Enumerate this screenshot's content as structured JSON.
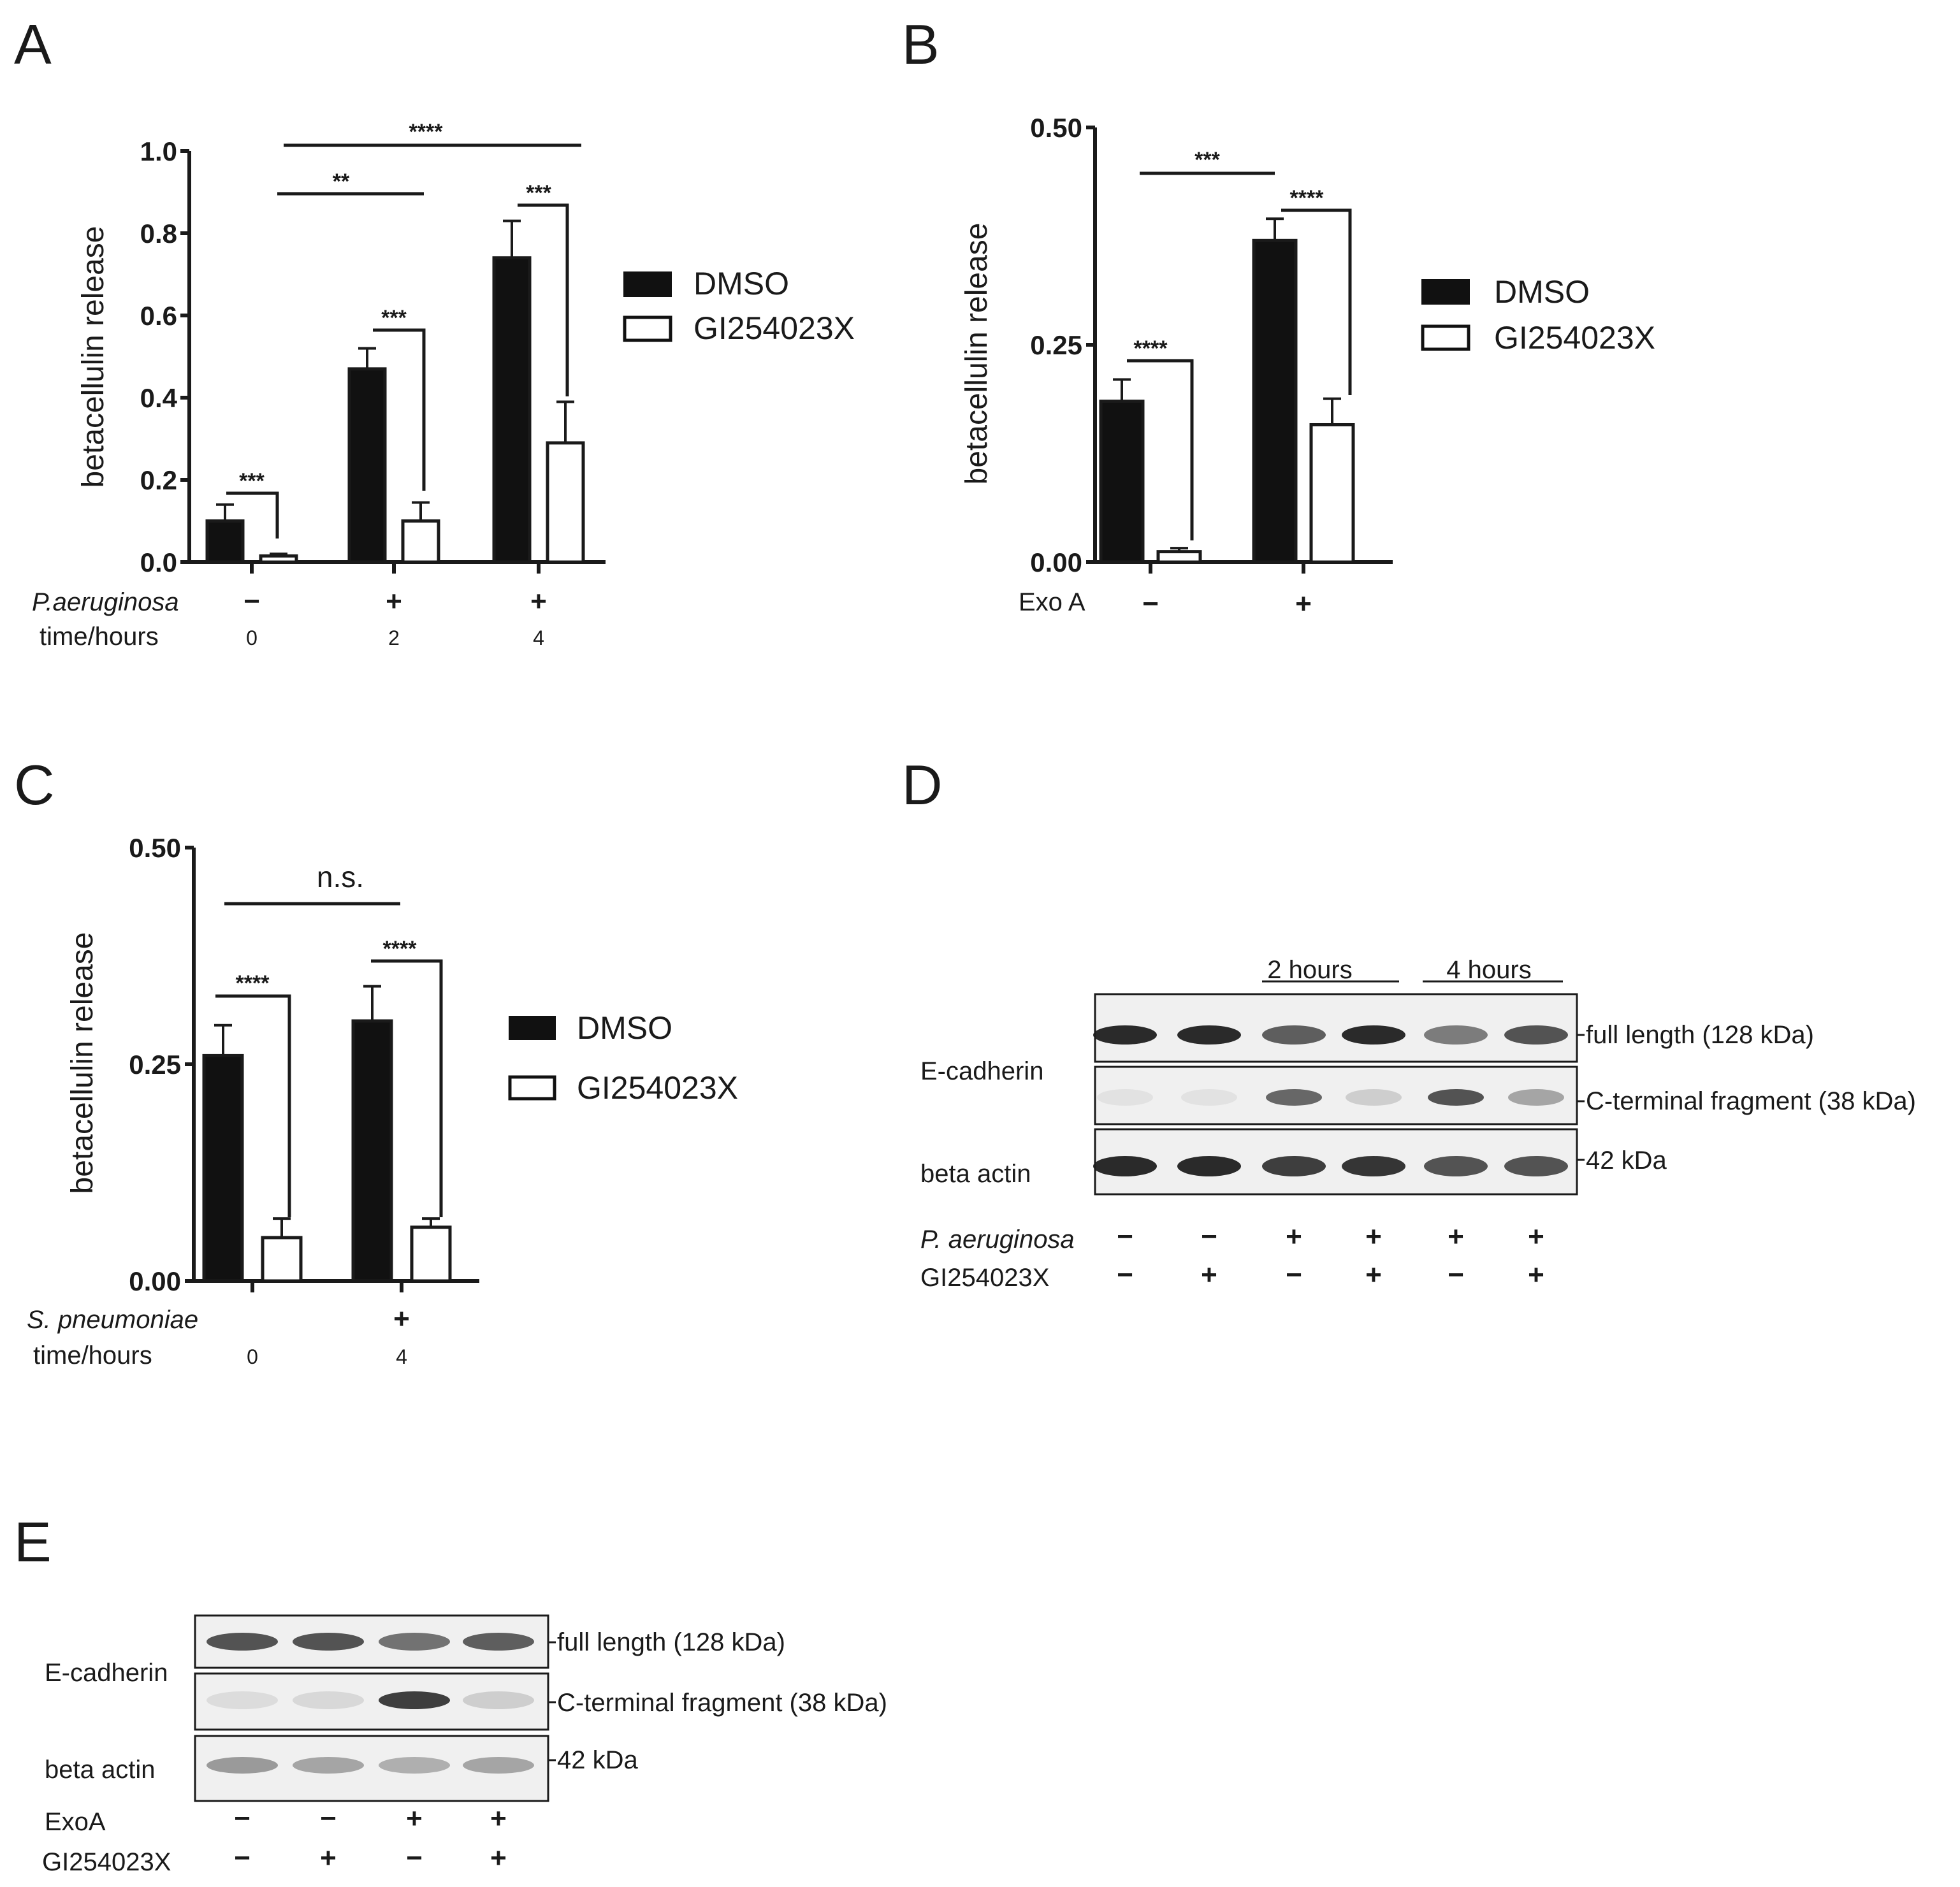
{
  "panel_labels": {
    "A": "A",
    "B": "B",
    "C": "C",
    "D": "D",
    "E": "E"
  },
  "legend": {
    "dmso": "DMSO",
    "gi": "GI254023X"
  },
  "colors": {
    "dmso": "#111111",
    "gi": "#ffffff",
    "ink": "#1a1a1a"
  },
  "chart_data": [
    {
      "panel": "A",
      "type": "bar",
      "ylabel": "betacellulin release",
      "ylim": [
        0,
        1.0
      ],
      "yticks": [
        "0.0",
        "0.2",
        "0.4",
        "0.6",
        "0.8",
        "1.0"
      ],
      "categories": [
        "0",
        "2",
        "4"
      ],
      "series": [
        {
          "name": "DMSO",
          "values": [
            0.1,
            0.47,
            0.74
          ],
          "errors": [
            0.04,
            0.05,
            0.09
          ]
        },
        {
          "name": "GI254023X",
          "values": [
            0.015,
            0.1,
            0.29
          ],
          "errors": [
            0.005,
            0.045,
            0.1
          ]
        }
      ],
      "conditions": [
        {
          "label": "P.aeruginosa",
          "values": [
            "−",
            "+",
            "+"
          ]
        },
        {
          "label": "time/hours",
          "values": [
            "0",
            "2",
            "4"
          ]
        }
      ],
      "significance": {
        "within": [
          "***",
          "***",
          "***"
        ],
        "between_02": "**",
        "between_04": "****"
      }
    },
    {
      "panel": "B",
      "type": "bar",
      "ylabel": "betacellulin release",
      "ylim": [
        0,
        0.5
      ],
      "yticks": [
        "0.00",
        "0.25",
        "0.50"
      ],
      "categories": [
        "−",
        "+"
      ],
      "series": [
        {
          "name": "DMSO",
          "values": [
            0.185,
            0.37
          ],
          "errors": [
            0.025,
            0.025
          ]
        },
        {
          "name": "GI254023X",
          "values": [
            0.012,
            0.158
          ],
          "errors": [
            0.004,
            0.03
          ]
        }
      ],
      "conditions": [
        {
          "label": "Exo A",
          "values": [
            "−",
            "+"
          ]
        }
      ],
      "significance": {
        "within": [
          "****",
          "****"
        ],
        "between": "***"
      }
    },
    {
      "panel": "C",
      "type": "bar",
      "ylabel": "betacellulin release",
      "ylim": [
        0,
        0.5
      ],
      "yticks": [
        "0.00",
        "0.25",
        "0.50"
      ],
      "categories": [
        "0",
        "4"
      ],
      "series": [
        {
          "name": "DMSO",
          "values": [
            0.26,
            0.3
          ],
          "errors": [
            0.035,
            0.04
          ]
        },
        {
          "name": "GI254023X",
          "values": [
            0.05,
            0.062
          ],
          "errors": [
            0.022,
            0.01
          ]
        }
      ],
      "conditions": [
        {
          "label": "S. pneumoniae",
          "values": [
            "",
            "+"
          ]
        },
        {
          "label": "time/hours",
          "values": [
            "0",
            "4"
          ]
        }
      ],
      "significance": {
        "within": [
          "****",
          "****"
        ],
        "between": "n.s."
      }
    }
  ],
  "blots": {
    "D": {
      "groups": [
        "2 hours",
        "4 hours"
      ],
      "rows": {
        "ecad": "E-cadherin",
        "actin": "beta actin"
      },
      "bands": {
        "full": "full length (128 kDa)",
        "ctf": "C-terminal fragment (38 kDa)",
        "actin": "42 kDa"
      },
      "intensity": {
        "full": [
          0.95,
          0.95,
          0.7,
          0.95,
          0.55,
          0.75
        ],
        "ctf": [
          0.05,
          0.05,
          0.65,
          0.15,
          0.75,
          0.35
        ],
        "actin": [
          0.95,
          0.95,
          0.85,
          0.9,
          0.75,
          0.75
        ]
      },
      "conditions": [
        {
          "label": "P. aeruginosa",
          "values": [
            "−",
            "−",
            "+",
            "+",
            "+",
            "+"
          ]
        },
        {
          "label": "GI254023X",
          "values": [
            "−",
            "+",
            "−",
            "+",
            "−",
            "+"
          ]
        }
      ]
    },
    "E": {
      "rows": {
        "ecad": "E-cadherin",
        "actin": "beta actin"
      },
      "bands": {
        "full": "full length (128 kDa)",
        "ctf": "C-terminal fragment (38 kDa)",
        "actin": "42 kDa"
      },
      "intensity": {
        "full": [
          0.75,
          0.75,
          0.6,
          0.7
        ],
        "ctf": [
          0.08,
          0.1,
          0.85,
          0.15
        ],
        "actin": [
          0.4,
          0.35,
          0.3,
          0.35
        ]
      },
      "conditions": [
        {
          "label": "ExoA",
          "values": [
            "−",
            "−",
            "+",
            "+"
          ]
        },
        {
          "label": "GI254023X",
          "values": [
            "−",
            "+",
            "−",
            "+"
          ]
        }
      ]
    }
  }
}
